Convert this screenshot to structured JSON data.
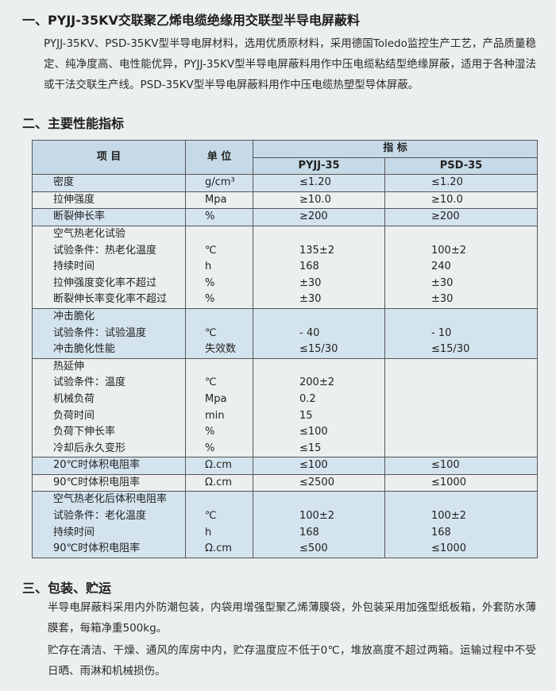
{
  "sections": [
    {
      "heading": "一、PYJJ-35KV交联聚乙烯电缆绝缘用交联型半导电屏蔽料",
      "paragraphs": [
        "PYJJ-35KV、PSD-35KV型半导电屏材料，选用优质原材料，采用德国Toledo监控生产工艺，产品质量稳定、纯净度高、电性能优异，PYJJ-35KV型半导电屏蔽料用作中压电缆粘结型绝缘屏蔽，适用于各种湿法或干法交联生产线。PSD-35KV型半导电屏蔽料用作中压电缆热塑型导体屏蔽。"
      ]
    },
    {
      "heading": "二、主要性能指标"
    },
    {
      "heading": "三、包装、贮运",
      "paragraphs": [
        "半导电屏蔽料采用内外防潮包装，内袋用增强型聚乙烯薄膜袋，外包装采用加强型纸板箱，外套防水薄膜套，每箱净重500kg。",
        "贮存在清洁、干燥、通风的库房中内，贮存温度应不低于0℃，堆放高度不超过两箱。运输过程中不受日晒、雨淋和机械损伤。"
      ]
    }
  ],
  "table": {
    "header": {
      "item": "项 目",
      "unit": "单 位",
      "spec": "指 标",
      "products": [
        "PYJJ-35",
        "PSD-35"
      ]
    },
    "groups": [
      {
        "lines": [
          [
            "密度",
            "g/cm³",
            "≤1.20",
            "≤1.20"
          ]
        ]
      },
      {
        "lines": [
          [
            "拉伸强度",
            "Mpa",
            "≥10.0",
            "≥10.0"
          ]
        ]
      },
      {
        "lines": [
          [
            "断裂伸长率",
            "%",
            "≥200",
            "≥200"
          ]
        ]
      },
      {
        "lines": [
          [
            "空气热老化试验",
            null,
            null,
            null
          ],
          [
            "试验条件：热老化温度",
            "℃",
            "135±2",
            "100±2"
          ],
          [
            "持续时间",
            "h",
            "168",
            "240"
          ],
          [
            "拉伸强度变化率不超过",
            "%",
            "±30",
            "±30"
          ],
          [
            "断裂伸长率变化率不超过",
            "%",
            "±30",
            "±30"
          ]
        ]
      },
      {
        "lines": [
          [
            "冲击脆化",
            null,
            null,
            null
          ],
          [
            "试验条件：试验温度",
            "℃",
            "- 40",
            "- 10"
          ],
          [
            "冲击脆化性能",
            "失效数",
            "≤15/30",
            "≤15/30"
          ]
        ]
      },
      {
        "lines": [
          [
            "热延伸",
            null,
            null,
            null
          ],
          [
            "试验条件：温度",
            "℃",
            "200±2",
            null
          ],
          [
            "机械负荷",
            "Mpa",
            "0.2",
            null
          ],
          [
            "负荷时间",
            "min",
            "15",
            null
          ],
          [
            "负荷下伸长率",
            "%",
            "≤100",
            null
          ],
          [
            "冷却后永久变形",
            "%",
            "≤15",
            null
          ]
        ]
      },
      {
        "lines": [
          [
            "20℃时体积电阻率",
            "Ω.cm",
            "≤100",
            "≤100"
          ]
        ]
      },
      {
        "lines": [
          [
            "90℃时体积电阻率",
            "Ω.cm",
            "≤2500",
            "≤1000"
          ]
        ]
      },
      {
        "lines": [
          [
            "空气热老化后体积电阻率",
            null,
            null,
            null
          ],
          [
            "试验条件：老化温度",
            "℃",
            "100±2",
            "100±2"
          ],
          [
            "持续时间",
            "h",
            "168",
            "168"
          ],
          [
            "90℃时体积电阻率",
            "Ω.cm",
            "≤500",
            "≤1000"
          ]
        ]
      }
    ]
  }
}
